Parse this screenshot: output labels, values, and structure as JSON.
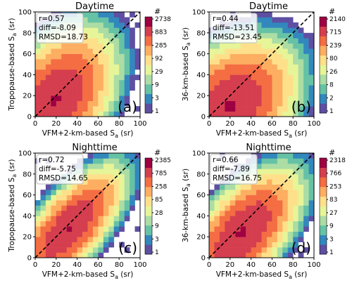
{
  "figure": {
    "description_panels": 4
  },
  "colorbar_colors": [
    "#5e4fa2",
    "#3288bd",
    "#66c2a5",
    "#abdda4",
    "#e6f598",
    "#fee08b",
    "#fdae61",
    "#f46d43",
    "#d53e4f",
    "#9e0142"
  ],
  "chart_data": [
    {
      "type": "heatmap",
      "panel_label": "(a)",
      "title": "Daytime",
      "xlabel": "VFM+2-km-based S",
      "xlabel_sub": "a",
      "xlabel_unit": " (sr)",
      "ylabel": "Tropopause-based S",
      "ylabel_sub": "a",
      "ylabel_unit": " (sr)",
      "xlim": [
        0,
        100
      ],
      "ylim": [
        0,
        100
      ],
      "xticks": [
        "0",
        "20",
        "40",
        "60",
        "80",
        "100"
      ],
      "yticks": [
        "0",
        "20",
        "40",
        "60",
        "80",
        "100"
      ],
      "stats": [
        "r=0.57",
        "diff=-8.09",
        "RMSD=18.73"
      ],
      "colorbar_title": "#",
      "colorbar_ticks": [
        "2738",
        "883",
        "285",
        "92",
        "29",
        "9",
        "3",
        "1"
      ],
      "one_to_one_line": true,
      "density_model": {
        "mx": 18,
        "my": 14,
        "sx": 20,
        "sy": 24,
        "rho": 0.45
      }
    },
    {
      "type": "heatmap",
      "panel_label": "(b)",
      "title": "Daytime",
      "xlabel": "VFM+2-km-based S",
      "xlabel_sub": "a",
      "xlabel_unit": " (sr)",
      "ylabel": "36-km-based S",
      "ylabel_sub": "a",
      "ylabel_unit": " (sr)",
      "xlim": [
        0,
        100
      ],
      "ylim": [
        0,
        100
      ],
      "xticks": [
        "0",
        "20",
        "40",
        "60",
        "80",
        "100"
      ],
      "yticks": [
        "0",
        "20",
        "40",
        "60",
        "80",
        "100"
      ],
      "stats": [
        "r=0.44",
        "diff=-13.51",
        "RMSD=23.45"
      ],
      "colorbar_title": "#",
      "colorbar_ticks": [
        "2140",
        "715",
        "239",
        "80",
        "26",
        "8",
        "2",
        "1"
      ],
      "one_to_one_line": true,
      "density_model": {
        "mx": 20,
        "my": 10,
        "sx": 22,
        "sy": 22,
        "rho": 0.35
      }
    },
    {
      "type": "heatmap",
      "panel_label": "(c)",
      "title": "Nighttime",
      "xlabel": "VFM+2-km-based S",
      "xlabel_sub": "a",
      "xlabel_unit": " (sr)",
      "ylabel": "Tropopause-based S",
      "ylabel_sub": "a",
      "ylabel_unit": " (sr)",
      "xlim": [
        0,
        100
      ],
      "ylim": [
        0,
        100
      ],
      "xticks": [
        "0",
        "20",
        "40",
        "60",
        "80",
        "100"
      ],
      "yticks": [
        "0",
        "20",
        "40",
        "60",
        "80",
        "100"
      ],
      "stats": [
        "r=0.72",
        "diff=-5.75",
        "RMSD=14.65"
      ],
      "colorbar_title": "#",
      "colorbar_ticks": [
        "2385",
        "785",
        "258",
        "85",
        "28",
        "9",
        "3",
        "1"
      ],
      "one_to_one_line": true,
      "density_model": {
        "mx": 32,
        "my": 28,
        "sx": 18,
        "sy": 20,
        "rho": 0.7
      }
    },
    {
      "type": "heatmap",
      "panel_label": "(d)",
      "title": "Nighttime",
      "xlabel": "VFM+2-km-based S",
      "xlabel_sub": "a",
      "xlabel_unit": " (sr)",
      "ylabel": "36-km-based S",
      "ylabel_sub": "a",
      "ylabel_unit": " (sr)",
      "xlim": [
        0,
        100
      ],
      "ylim": [
        0,
        100
      ],
      "xticks": [
        "0",
        "20",
        "40",
        "60",
        "80",
        "100"
      ],
      "yticks": [
        "0",
        "20",
        "40",
        "60",
        "80",
        "100"
      ],
      "stats": [
        "r=0.66",
        "diff=-7.89",
        "RMSD=16.75"
      ],
      "colorbar_title": "#",
      "colorbar_ticks": [
        "2318",
        "766",
        "253",
        "83",
        "27",
        "9",
        "3",
        "1"
      ],
      "one_to_one_line": true,
      "density_model": {
        "mx": 32,
        "my": 24,
        "sx": 19,
        "sy": 21,
        "rho": 0.6
      }
    }
  ]
}
